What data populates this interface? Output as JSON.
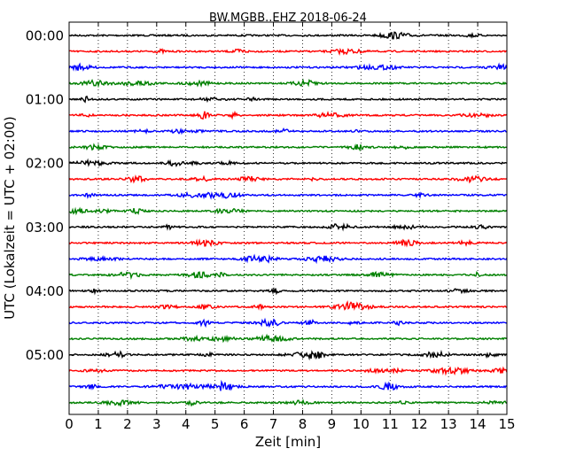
{
  "chart_data": {
    "type": "line",
    "title": "BW.MGBB..EHZ 2018-06-24",
    "xlabel": "Zeit  [min]",
    "ylabel": "UTC (Lokalzeit = UTC + 02:00)",
    "xlim": [
      0,
      15
    ],
    "x_ticks": [
      "0",
      "1",
      "2",
      "3",
      "4",
      "5",
      "6",
      "7",
      "8",
      "9",
      "10",
      "11",
      "12",
      "13",
      "14",
      "15"
    ],
    "y_ticks": [
      "00:00",
      "01:00",
      "02:00",
      "03:00",
      "04:00",
      "05:00"
    ],
    "grid": "vertical dotted",
    "trace_colors": [
      "#000000",
      "#ff0000",
      "#0000ff",
      "#008000"
    ],
    "traces": [
      {
        "start": "00:00",
        "color": "#000000"
      },
      {
        "start": "00:15",
        "color": "#ff0000"
      },
      {
        "start": "00:30",
        "color": "#0000ff"
      },
      {
        "start": "00:45",
        "color": "#008000"
      },
      {
        "start": "01:00",
        "color": "#000000"
      },
      {
        "start": "01:15",
        "color": "#ff0000"
      },
      {
        "start": "01:30",
        "color": "#0000ff"
      },
      {
        "start": "01:45",
        "color": "#008000"
      },
      {
        "start": "02:00",
        "color": "#000000"
      },
      {
        "start": "02:15",
        "color": "#ff0000"
      },
      {
        "start": "02:30",
        "color": "#0000ff"
      },
      {
        "start": "02:45",
        "color": "#008000"
      },
      {
        "start": "03:00",
        "color": "#000000"
      },
      {
        "start": "03:15",
        "color": "#ff0000"
      },
      {
        "start": "03:30",
        "color": "#0000ff"
      },
      {
        "start": "03:45",
        "color": "#008000"
      },
      {
        "start": "04:00",
        "color": "#000000"
      },
      {
        "start": "04:15",
        "color": "#ff0000"
      },
      {
        "start": "04:30",
        "color": "#0000ff"
      },
      {
        "start": "04:45",
        "color": "#008000"
      },
      {
        "start": "05:00",
        "color": "#000000"
      },
      {
        "start": "05:15",
        "color": "#ff0000"
      },
      {
        "start": "05:30",
        "color": "#0000ff"
      },
      {
        "start": "05:45",
        "color": "#008000"
      }
    ]
  }
}
